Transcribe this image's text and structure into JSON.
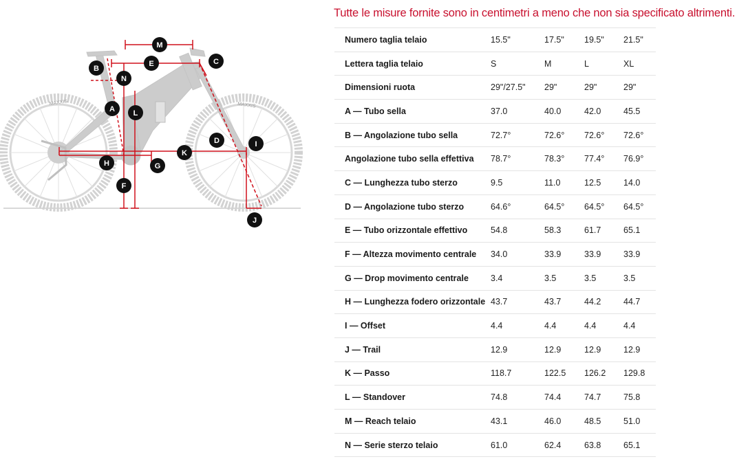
{
  "heading": "Tutte le misure fornite sono in centimetri a meno che non sia specificato altrimenti.",
  "diagram": {
    "marker_labels": [
      "M",
      "E",
      "C",
      "B",
      "N",
      "A",
      "L",
      "D",
      "I",
      "K",
      "H",
      "G",
      "F",
      "J"
    ],
    "tire_text_left": "MAXXIS",
    "tire_text_right": "MAXXIS",
    "colors": {
      "bike": "#cfcfcf",
      "dimension_lines": "#d0101b",
      "badge": "#111111",
      "ground": "#cccccc"
    }
  },
  "table": {
    "rows": [
      {
        "label": "Numero taglia telaio",
        "values": [
          "15.5\"",
          "17.5\"",
          "19.5\"",
          "21.5\""
        ]
      },
      {
        "label": "Lettera taglia telaio",
        "values": [
          "S",
          "M",
          "L",
          "XL"
        ]
      },
      {
        "label": "Dimensioni ruota",
        "values": [
          "29\"/27.5\"",
          "29\"",
          "29\"",
          "29\""
        ]
      },
      {
        "label": "A — Tubo sella",
        "values": [
          "37.0",
          "40.0",
          "42.0",
          "45.5"
        ]
      },
      {
        "label": "B — Angolazione tubo sella",
        "values": [
          "72.7°",
          "72.6°",
          "72.6°",
          "72.6°"
        ]
      },
      {
        "label": "Angolazione tubo sella effettiva",
        "values": [
          "78.7°",
          "78.3°",
          "77.4°",
          "76.9°"
        ]
      },
      {
        "label": "C — Lunghezza tubo sterzo",
        "values": [
          "9.5",
          "11.0",
          "12.5",
          "14.0"
        ]
      },
      {
        "label": "D — Angolazione tubo sterzo",
        "values": [
          "64.6°",
          "64.5°",
          "64.5°",
          "64.5°"
        ]
      },
      {
        "label": "E — Tubo orizzontale effettivo",
        "values": [
          "54.8",
          "58.3",
          "61.7",
          "65.1"
        ]
      },
      {
        "label": "F — Altezza movimento centrale",
        "values": [
          "34.0",
          "33.9",
          "33.9",
          "33.9"
        ]
      },
      {
        "label": "G — Drop movimento centrale",
        "values": [
          "3.4",
          "3.5",
          "3.5",
          "3.5"
        ]
      },
      {
        "label": "H — Lunghezza fodero orizzontale",
        "values": [
          "43.7",
          "43.7",
          "44.2",
          "44.7"
        ]
      },
      {
        "label": "I — Offset",
        "values": [
          "4.4",
          "4.4",
          "4.4",
          "4.4"
        ]
      },
      {
        "label": "J — Trail",
        "values": [
          "12.9",
          "12.9",
          "12.9",
          "12.9"
        ]
      },
      {
        "label": "K — Passo",
        "values": [
          "118.7",
          "122.5",
          "126.2",
          "129.8"
        ]
      },
      {
        "label": "L — Standover",
        "values": [
          "74.8",
          "74.4",
          "74.7",
          "75.8"
        ]
      },
      {
        "label": "M — Reach telaio",
        "values": [
          "43.1",
          "46.0",
          "48.5",
          "51.0"
        ]
      },
      {
        "label": "N — Serie sterzo telaio",
        "values": [
          "61.0",
          "62.4",
          "63.8",
          "65.1"
        ]
      }
    ]
  }
}
